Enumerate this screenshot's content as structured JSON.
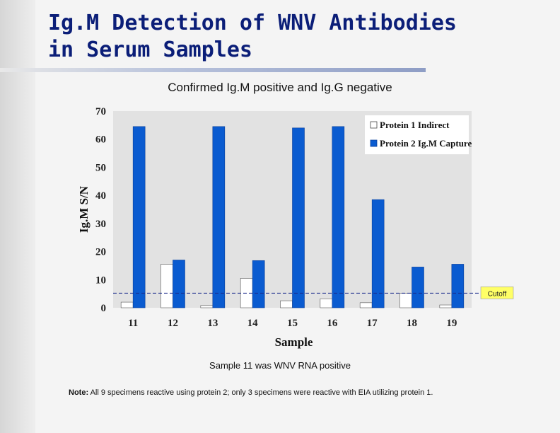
{
  "slide": {
    "title_line1": "Ig.M Detection of WNV Antibodies",
    "title_line2": "in Serum Samples",
    "subtitle": "Confirmed Ig.M positive and Ig.G negative",
    "note_line": "Sample 11 was WNV RNA positive",
    "footnote_label": "Note:",
    "footnote_text": "All 9 specimens reactive using protein 2; only 3 specimens were reactive with EIA utilizing protein 1."
  },
  "colors": {
    "title": "#0b1e78",
    "series_capture": "#0a5bd0",
    "series_indirect": "#ffffff",
    "plot_background": "#e2e2e2",
    "cutoff_line": "#1a2a8a"
  },
  "chart_data": {
    "type": "bar",
    "title": "",
    "xlabel": "Sample",
    "ylabel": "Ig.M S/N",
    "categories": [
      "11",
      "12",
      "13",
      "14",
      "15",
      "16",
      "17",
      "18",
      "19"
    ],
    "series": [
      {
        "name": "Protein 1 Indirect",
        "values": [
          2,
          15.5,
          0.8,
          10.5,
          2.5,
          3.2,
          1.8,
          5.2,
          1.0
        ]
      },
      {
        "name": "Protein 2 Ig.M Capture",
        "values": [
          64.5,
          17,
          64.5,
          16.8,
          64,
          64.5,
          38.5,
          14.5,
          15.5
        ]
      }
    ],
    "ylim": [
      0,
      70
    ],
    "yticks": [
      0,
      10,
      20,
      30,
      40,
      50,
      60,
      70
    ],
    "cutoff": {
      "label": "Cutoff",
      "value": 5.2
    },
    "grid": false,
    "legend_position": "top-right"
  }
}
